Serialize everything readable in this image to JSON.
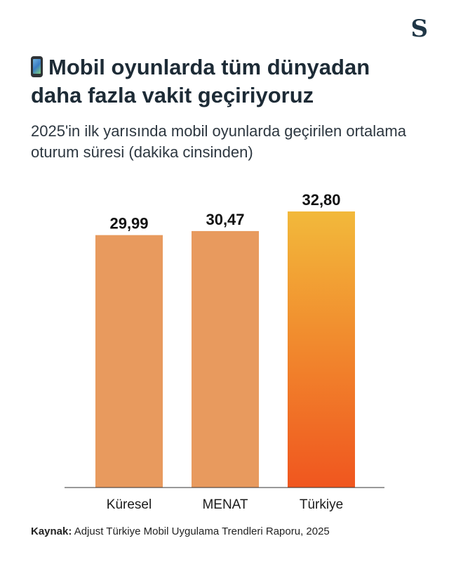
{
  "brand": {
    "logo_text": "S"
  },
  "header": {
    "emoji_icon": "mobile-phone-icon",
    "title": "Mobil oyunlarda tüm dünyadan daha fazla vakit geçiriyoruz",
    "subtitle": "2025'in ilk yarısında mobil oyunlarda geçirilen ortalama oturum süresi (dakika cinsinden)"
  },
  "chart_data": {
    "type": "bar",
    "title": "Mobil oyunlarda tüm dünyadan daha fazla vakit geçiriyoruz",
    "subtitle": "2025'in ilk yarısında mobil oyunlarda geçirilen ortalama oturum süresi (dakika cinsinden)",
    "categories": [
      "Küresel",
      "MENAT",
      "Türkiye"
    ],
    "values": [
      29.99,
      30.47,
      32.8
    ],
    "value_labels": [
      "29,99",
      "30,47",
      "32,80"
    ],
    "xlabel": "",
    "ylabel": "",
    "ylim": [
      0,
      32.8
    ],
    "colors": [
      "#E89A5E",
      "#E89A5E",
      "gradient:#F2B93B-#F0561F"
    ]
  },
  "footer": {
    "source_label": "Kaynak:",
    "source_text": "Adjust Türkiye Mobil Uygulama Trendleri Raporu, 2025"
  }
}
